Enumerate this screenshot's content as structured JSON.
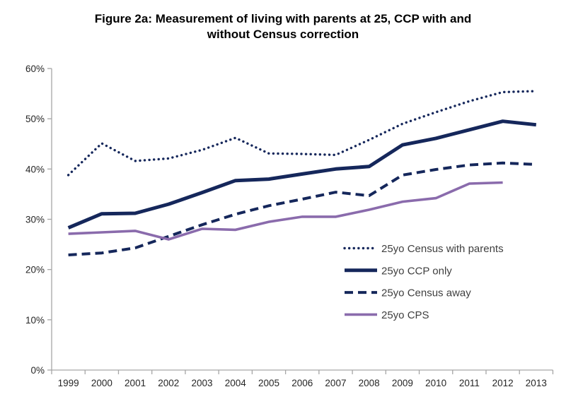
{
  "chart_data": {
    "type": "line",
    "title": "Figure 2a: Measurement of living with parents at 25, CCP with and without Census correction",
    "x": [
      1999,
      2000,
      2001,
      2002,
      2003,
      2004,
      2005,
      2006,
      2007,
      2008,
      2009,
      2010,
      2011,
      2012,
      2013
    ],
    "x_labels": [
      "1999",
      "2000",
      "2001",
      "2002",
      "2003",
      "2004",
      "2005",
      "2006",
      "2007",
      "2008",
      "2009",
      "2010",
      "2011",
      "2012",
      "2013"
    ],
    "y_tick_labels": [
      "0%",
      "10%",
      "20%",
      "30%",
      "40%",
      "50%",
      "60%"
    ],
    "ylabel": "",
    "xlabel": "",
    "ylim": [
      0,
      60
    ],
    "grid": false,
    "legend_position": "inside-right",
    "series": [
      {
        "name": "25yo Census with parents",
        "style": "dotted",
        "color": "#15275B",
        "values": [
          38.8,
          45.1,
          41.6,
          42.1,
          43.8,
          46.2,
          43.1,
          43.0,
          42.8,
          45.8,
          49.0,
          51.3,
          53.5,
          55.3,
          55.5
        ]
      },
      {
        "name": "25yo CCP only",
        "style": "solid-thick",
        "color": "#15275B",
        "values": [
          28.3,
          31.1,
          31.2,
          33.0,
          35.3,
          37.7,
          38.0,
          39.0,
          40.0,
          40.5,
          44.8,
          46.1,
          47.8,
          49.5,
          48.8
        ]
      },
      {
        "name": "25yo Census away",
        "style": "dashed",
        "color": "#15275B",
        "values": [
          22.9,
          23.3,
          24.3,
          26.6,
          28.9,
          31.0,
          32.7,
          34.0,
          35.4,
          34.7,
          38.8,
          39.9,
          40.8,
          41.2,
          40.9
        ]
      },
      {
        "name": "25yo CPS",
        "style": "solid",
        "color": "#8A6BAC",
        "values": [
          27.1,
          27.4,
          27.7,
          26.0,
          28.1,
          27.9,
          29.5,
          30.5,
          30.5,
          31.9,
          33.5,
          34.2,
          37.1,
          37.3,
          null
        ]
      }
    ],
    "axis_color": "#A6A6A6"
  }
}
